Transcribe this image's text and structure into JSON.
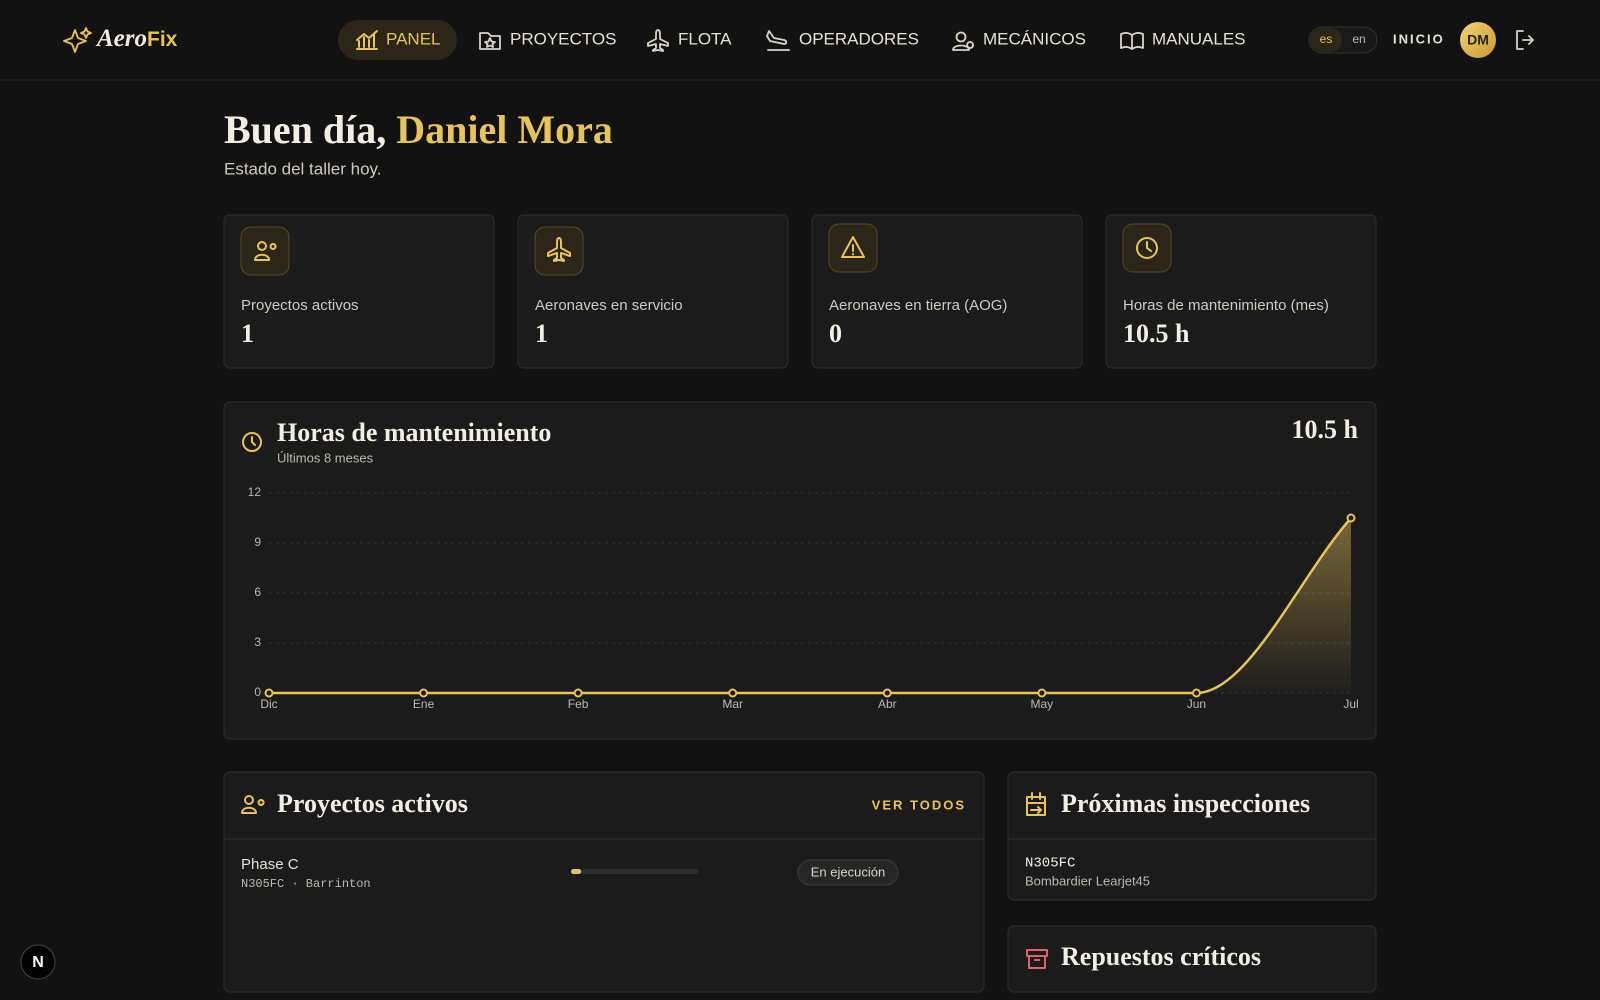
{
  "brand": {
    "part1": "Aero",
    "part2": "Fix"
  },
  "nav": {
    "items": [
      "PANEL",
      "PROYECTOS",
      "FLOTA",
      "OPERADORES",
      "MECÁNICOS",
      "MANUALES"
    ],
    "languages": [
      "es",
      "en"
    ],
    "home": "INICIO",
    "avatar": "DM"
  },
  "header": {
    "greeting": "Buen día,",
    "name": "Daniel Mora",
    "subtitle": "Estado del taller hoy."
  },
  "stats": [
    {
      "label": "Proyectos activos",
      "value": 1
    },
    {
      "label": "Aeronaves en servicio",
      "value": 1
    },
    {
      "label": "Aeronaves en tierra (AOG)",
      "value": 0
    },
    {
      "label": "Horas de mantenimiento (mes)",
      "value": "10.5 h"
    }
  ],
  "chart_data": {
    "type": "line",
    "title": "Horas de mantenimiento",
    "subtitle": "Últimos 8 meses",
    "total": "10.5 h",
    "categories": [
      "Dic",
      "Ene",
      "Feb",
      "Mar",
      "Abr",
      "May",
      "Jun",
      "Jul"
    ],
    "values": [
      0,
      0,
      0,
      0,
      0,
      0,
      0,
      10.5
    ],
    "color": "#e8c25a",
    "ylim": [
      0,
      12
    ],
    "yticks": [
      0,
      3,
      6,
      9,
      12
    ],
    "grid": true
  },
  "projects": {
    "title": "Proyectos activos",
    "link": "VER TODOS",
    "rows": [
      {
        "name": "Phase C",
        "detail": "N305FC · Barrinton",
        "progress": 8,
        "status": "En ejecución"
      }
    ]
  },
  "inspections": {
    "title": "Próximas inspecciones",
    "rows": [
      {
        "tail": "N305FC",
        "model": "Bombardier Learjet45"
      }
    ]
  },
  "parts": {
    "title": "Repuestos críticos"
  },
  "dev_badge": "N"
}
